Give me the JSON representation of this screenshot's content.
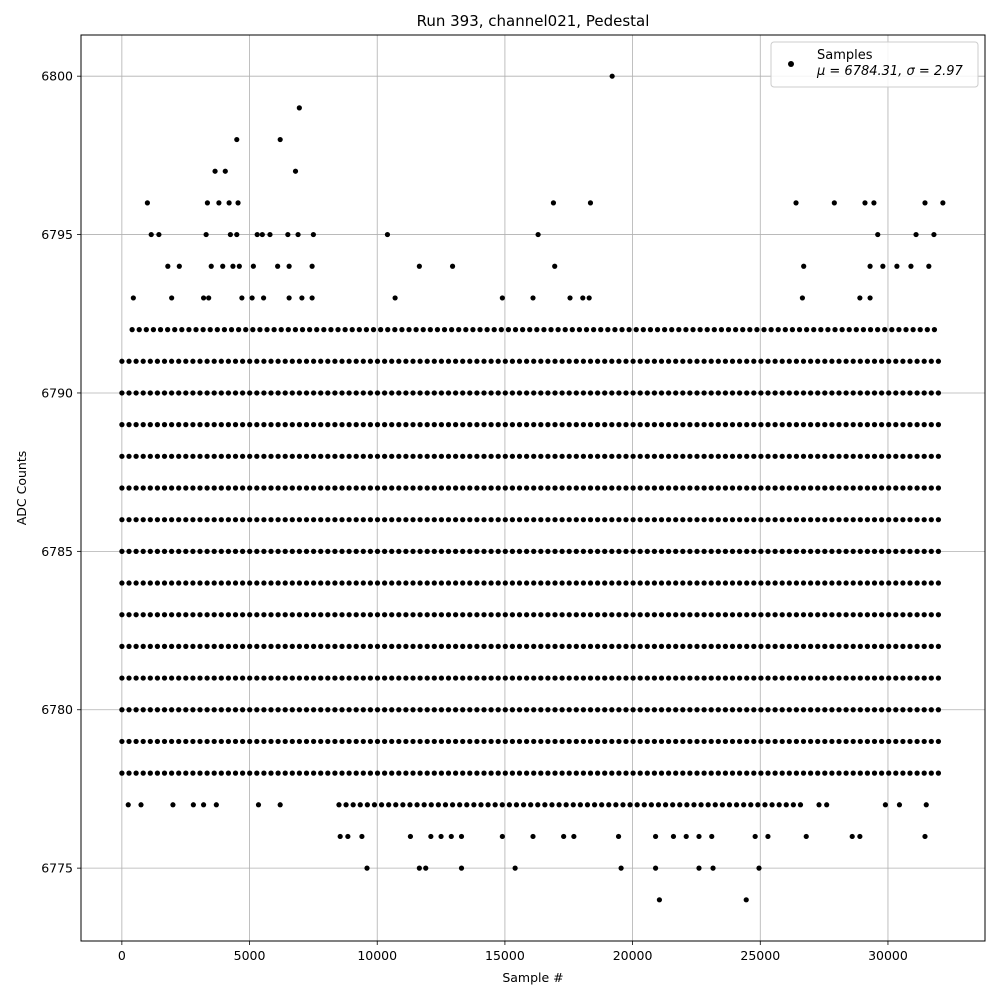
{
  "chart_data": {
    "type": "scatter",
    "title": "Run 393, channel021, Pedestal",
    "xlabel": "Sample #",
    "ylabel": "ADC Counts",
    "xlim": [
      -1600,
      33800
    ],
    "ylim": [
      6772.7,
      6801.3
    ],
    "xticks": [
      0,
      5000,
      10000,
      15000,
      20000,
      25000,
      30000
    ],
    "yticks": [
      6775,
      6780,
      6785,
      6790,
      6795,
      6800
    ],
    "grid": true,
    "legend": {
      "placement": "top-right",
      "entry": "Samples",
      "stats": "μ = 6784.31, σ = 2.97"
    },
    "series": [
      {
        "name": "Samples",
        "color": "#000000",
        "x_range": [
          0,
          32200
        ],
        "dense_levels": [
          {
            "y": 6777,
            "x": [
              8500,
              26800
            ]
          },
          {
            "y": 6778,
            "x": [
              0,
              32100
            ]
          },
          {
            "y": 6779,
            "x": [
              0,
              32100
            ]
          },
          {
            "y": 6780,
            "x": [
              0,
              32200
            ]
          },
          {
            "y": 6781,
            "x": [
              0,
              32200
            ]
          },
          {
            "y": 6782,
            "x": [
              0,
              32200
            ]
          },
          {
            "y": 6783,
            "x": [
              0,
              32200
            ]
          },
          {
            "y": 6784,
            "x": [
              0,
              32200
            ]
          },
          {
            "y": 6785,
            "x": [
              0,
              32200
            ]
          },
          {
            "y": 6786,
            "x": [
              0,
              32200
            ]
          },
          {
            "y": 6787,
            "x": [
              0,
              32200
            ]
          },
          {
            "y": 6788,
            "x": [
              0,
              32200
            ]
          },
          {
            "y": 6789,
            "x": [
              0,
              32200
            ]
          },
          {
            "y": 6790,
            "x": [
              0,
              32200
            ]
          },
          {
            "y": 6791,
            "x": [
              0,
              32100
            ]
          },
          {
            "y": 6792,
            "x": [
              400,
              31900
            ]
          }
        ],
        "outliers": [
          [
            19200,
            6800
          ],
          [
            6950,
            6799
          ],
          [
            4500,
            6798
          ],
          [
            6200,
            6798
          ],
          [
            3650,
            6797
          ],
          [
            4050,
            6797
          ],
          [
            6800,
            6797
          ],
          [
            1000,
            6796
          ],
          [
            3350,
            6796
          ],
          [
            3800,
            6796
          ],
          [
            4200,
            6796
          ],
          [
            4550,
            6796
          ],
          [
            16900,
            6796
          ],
          [
            18350,
            6796
          ],
          [
            26400,
            6796
          ],
          [
            27900,
            6796
          ],
          [
            29100,
            6796
          ],
          [
            29450,
            6796
          ],
          [
            31450,
            6796
          ],
          [
            32150,
            6796
          ],
          [
            1150,
            6795
          ],
          [
            1450,
            6795
          ],
          [
            3300,
            6795
          ],
          [
            4250,
            6795
          ],
          [
            4500,
            6795
          ],
          [
            5300,
            6795
          ],
          [
            5500,
            6795
          ],
          [
            5800,
            6795
          ],
          [
            6500,
            6795
          ],
          [
            6900,
            6795
          ],
          [
            7500,
            6795
          ],
          [
            10400,
            6795
          ],
          [
            16300,
            6795
          ],
          [
            29600,
            6795
          ],
          [
            31100,
            6795
          ],
          [
            31800,
            6795
          ],
          [
            1800,
            6794
          ],
          [
            2250,
            6794
          ],
          [
            3500,
            6794
          ],
          [
            3950,
            6794
          ],
          [
            4350,
            6794
          ],
          [
            4600,
            6794
          ],
          [
            5150,
            6794
          ],
          [
            6100,
            6794
          ],
          [
            6550,
            6794
          ],
          [
            7450,
            6794
          ],
          [
            11650,
            6794
          ],
          [
            12950,
            6794
          ],
          [
            16950,
            6794
          ],
          [
            26700,
            6794
          ],
          [
            29300,
            6794
          ],
          [
            29800,
            6794
          ],
          [
            30350,
            6794
          ],
          [
            30900,
            6794
          ],
          [
            31600,
            6794
          ],
          [
            450,
            6793
          ],
          [
            1950,
            6793
          ],
          [
            3200,
            6793
          ],
          [
            3400,
            6793
          ],
          [
            4700,
            6793
          ],
          [
            5100,
            6793
          ],
          [
            5550,
            6793
          ],
          [
            6550,
            6793
          ],
          [
            7050,
            6793
          ],
          [
            7450,
            6793
          ],
          [
            10700,
            6793
          ],
          [
            14900,
            6793
          ],
          [
            16100,
            6793
          ],
          [
            17550,
            6793
          ],
          [
            18050,
            6793
          ],
          [
            18300,
            6793
          ],
          [
            26650,
            6793
          ],
          [
            28900,
            6793
          ],
          [
            29300,
            6793
          ],
          [
            9600,
            6775
          ],
          [
            11650,
            6775
          ],
          [
            11900,
            6775
          ],
          [
            13300,
            6775
          ],
          [
            15400,
            6775
          ],
          [
            19550,
            6775
          ],
          [
            20900,
            6775
          ],
          [
            22600,
            6775
          ],
          [
            23150,
            6775
          ],
          [
            24950,
            6775
          ],
          [
            21050,
            6774
          ],
          [
            24450,
            6774
          ],
          [
            8550,
            6776
          ],
          [
            8850,
            6776
          ],
          [
            9400,
            6776
          ],
          [
            11300,
            6776
          ],
          [
            12100,
            6776
          ],
          [
            12500,
            6776
          ],
          [
            12900,
            6776
          ],
          [
            13300,
            6776
          ],
          [
            14900,
            6776
          ],
          [
            16100,
            6776
          ],
          [
            17300,
            6776
          ],
          [
            17700,
            6776
          ],
          [
            19450,
            6776
          ],
          [
            20900,
            6776
          ],
          [
            21600,
            6776
          ],
          [
            22100,
            6776
          ],
          [
            22600,
            6776
          ],
          [
            23100,
            6776
          ],
          [
            24800,
            6776
          ],
          [
            25300,
            6776
          ],
          [
            26800,
            6776
          ],
          [
            28600,
            6776
          ],
          [
            28900,
            6776
          ],
          [
            31450,
            6776
          ],
          [
            250,
            6777
          ],
          [
            750,
            6777
          ],
          [
            2000,
            6777
          ],
          [
            2800,
            6777
          ],
          [
            3200,
            6777
          ],
          [
            3700,
            6777
          ],
          [
            5350,
            6777
          ],
          [
            6200,
            6777
          ],
          [
            27300,
            6777
          ],
          [
            27600,
            6777
          ],
          [
            29900,
            6777
          ],
          [
            30450,
            6777
          ],
          [
            31500,
            6777
          ]
        ]
      }
    ]
  }
}
